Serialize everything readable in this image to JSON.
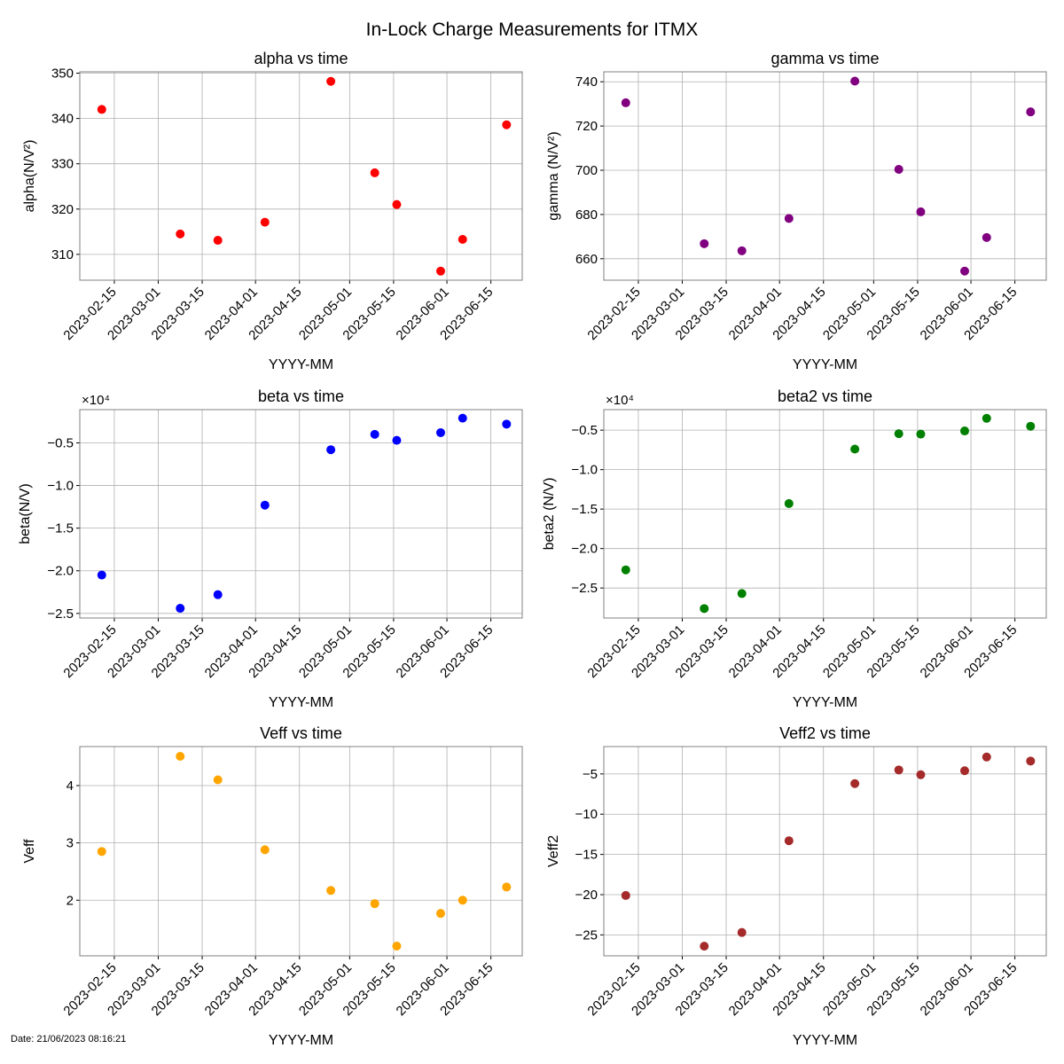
{
  "figure": {
    "title": "In-Lock Charge Measurements for ITMX",
    "footer_date": "Date: 21/06/2023 08:16:21"
  },
  "chart_data": [
    {
      "type": "scatter",
      "title": "alpha vs time",
      "xlabel": "YYYY-MM",
      "ylabel": "alpha(N/V²)",
      "color": "#ff0000",
      "x": [
        "2023-02-11",
        "2023-03-08",
        "2023-03-20",
        "2023-04-04",
        "2023-04-25",
        "2023-05-09",
        "2023-05-16",
        "2023-05-30",
        "2023-06-06",
        "2023-06-20"
      ],
      "values": [
        342.0,
        314.5,
        313.1,
        317.1,
        348.2,
        328.0,
        321.0,
        306.3,
        313.3,
        338.6
      ],
      "ylim": [
        304.3,
        350.3
      ],
      "yticks": [
        310,
        320,
        330,
        340,
        350
      ],
      "ytick_labels": [
        "310",
        "320",
        "330",
        "340",
        "350"
      ],
      "xlim": [
        "2023-02-04",
        "2023-06-25"
      ],
      "xticks": [
        "2023-02-15",
        "2023-03-01",
        "2023-03-15",
        "2023-04-01",
        "2023-04-15",
        "2023-05-01",
        "2023-05-15",
        "2023-06-01",
        "2023-06-15"
      ],
      "offset_label": "",
      "grid": true
    },
    {
      "type": "scatter",
      "title": "gamma vs time",
      "xlabel": "YYYY-MM",
      "ylabel": "gamma (N/V²)",
      "color": "#800080",
      "x": [
        "2023-02-11",
        "2023-03-08",
        "2023-03-20",
        "2023-04-04",
        "2023-04-25",
        "2023-05-09",
        "2023-05-16",
        "2023-05-30",
        "2023-06-06",
        "2023-06-20"
      ],
      "values": [
        730.5,
        666.8,
        663.6,
        678.2,
        740.3,
        700.4,
        681.2,
        654.4,
        669.6,
        726.4
      ],
      "ylim": [
        650.3,
        744.5
      ],
      "yticks": [
        660,
        680,
        700,
        720,
        740
      ],
      "ytick_labels": [
        "660",
        "680",
        "700",
        "720",
        "740"
      ],
      "xlim": [
        "2023-02-04",
        "2023-06-25"
      ],
      "xticks": [
        "2023-02-15",
        "2023-03-01",
        "2023-03-15",
        "2023-04-01",
        "2023-04-15",
        "2023-05-01",
        "2023-05-15",
        "2023-06-01",
        "2023-06-15"
      ],
      "offset_label": "",
      "grid": true
    },
    {
      "type": "scatter",
      "title": "beta vs time",
      "xlabel": "YYYY-MM",
      "ylabel": "beta(N/V)",
      "color": "#0000ff",
      "x": [
        "2023-02-11",
        "2023-03-08",
        "2023-03-20",
        "2023-04-04",
        "2023-04-25",
        "2023-05-09",
        "2023-05-16",
        "2023-05-30",
        "2023-06-06",
        "2023-06-20"
      ],
      "values": [
        -20500,
        -24400,
        -22800,
        -12300,
        -5800,
        -4000,
        -4700,
        -3800,
        -2100,
        -2800
      ],
      "ylim": [
        -25540,
        -1100
      ],
      "yticks": [
        -25000,
        -20000,
        -15000,
        -10000,
        -5000
      ],
      "ytick_labels": [
        "−2.5",
        "−2.0",
        "−1.5",
        "−1.0",
        "−0.5"
      ],
      "xlim": [
        "2023-02-04",
        "2023-06-25"
      ],
      "xticks": [
        "2023-02-15",
        "2023-03-01",
        "2023-03-15",
        "2023-04-01",
        "2023-04-15",
        "2023-05-01",
        "2023-05-15",
        "2023-06-01",
        "2023-06-15"
      ],
      "offset_label": "×10⁴",
      "grid": true
    },
    {
      "type": "scatter",
      "title": "beta2 vs time",
      "xlabel": "YYYY-MM",
      "ylabel": "beta2 (N/V)",
      "color": "#008000",
      "x": [
        "2023-02-11",
        "2023-03-08",
        "2023-03-20",
        "2023-04-04",
        "2023-04-25",
        "2023-05-09",
        "2023-05-16",
        "2023-05-30",
        "2023-06-06",
        "2023-06-20"
      ],
      "values": [
        -22700,
        -27600,
        -25700,
        -14300,
        -7400,
        -5450,
        -5500,
        -5100,
        -3500,
        -4500
      ],
      "ylim": [
        -28800,
        -2400
      ],
      "yticks": [
        -25000,
        -20000,
        -15000,
        -10000,
        -5000
      ],
      "ytick_labels": [
        "−2.5",
        "−2.0",
        "−1.5",
        "−1.0",
        "−0.5"
      ],
      "xlim": [
        "2023-02-04",
        "2023-06-25"
      ],
      "xticks": [
        "2023-02-15",
        "2023-03-01",
        "2023-03-15",
        "2023-04-01",
        "2023-04-15",
        "2023-05-01",
        "2023-05-15",
        "2023-06-01",
        "2023-06-15"
      ],
      "offset_label": "×10⁴",
      "grid": true
    },
    {
      "type": "scatter",
      "title": "Veff vs time",
      "xlabel": "YYYY-MM",
      "ylabel": "Veff",
      "color": "#ffa500",
      "x": [
        "2023-02-11",
        "2023-03-08",
        "2023-03-20",
        "2023-04-04",
        "2023-04-25",
        "2023-05-09",
        "2023-05-16",
        "2023-05-30",
        "2023-06-06",
        "2023-06-20"
      ],
      "values": [
        2.85,
        4.51,
        4.1,
        2.88,
        2.17,
        1.94,
        1.2,
        1.77,
        2.0,
        2.23
      ],
      "ylim": [
        1.03,
        4.68
      ],
      "yticks": [
        2,
        3,
        4
      ],
      "ytick_labels": [
        "2",
        "3",
        "4"
      ],
      "xlim": [
        "2023-02-04",
        "2023-06-25"
      ],
      "xticks": [
        "2023-02-15",
        "2023-03-01",
        "2023-03-15",
        "2023-04-01",
        "2023-04-15",
        "2023-05-01",
        "2023-05-15",
        "2023-06-01",
        "2023-06-15"
      ],
      "offset_label": "",
      "grid": true
    },
    {
      "type": "scatter",
      "title": "Veff2 vs time",
      "xlabel": "YYYY-MM",
      "ylabel": "Veff2",
      "color": "#a52a2a",
      "x": [
        "2023-02-11",
        "2023-03-08",
        "2023-03-20",
        "2023-04-04",
        "2023-04-25",
        "2023-05-09",
        "2023-05-16",
        "2023-05-30",
        "2023-06-06",
        "2023-06-20"
      ],
      "values": [
        -20.1,
        -26.4,
        -24.7,
        -13.3,
        -6.2,
        -4.5,
        -5.1,
        -4.6,
        -2.9,
        -3.4
      ],
      "ylim": [
        -27.6,
        -1.6
      ],
      "yticks": [
        -25,
        -20,
        -15,
        -10,
        -5
      ],
      "ytick_labels": [
        "−25",
        "−20",
        "−15",
        "−10",
        "−5"
      ],
      "xlim": [
        "2023-02-04",
        "2023-06-25"
      ],
      "xticks": [
        "2023-02-15",
        "2023-03-01",
        "2023-03-15",
        "2023-04-01",
        "2023-04-15",
        "2023-05-01",
        "2023-05-15",
        "2023-06-01",
        "2023-06-15"
      ],
      "offset_label": "",
      "grid": true
    }
  ]
}
